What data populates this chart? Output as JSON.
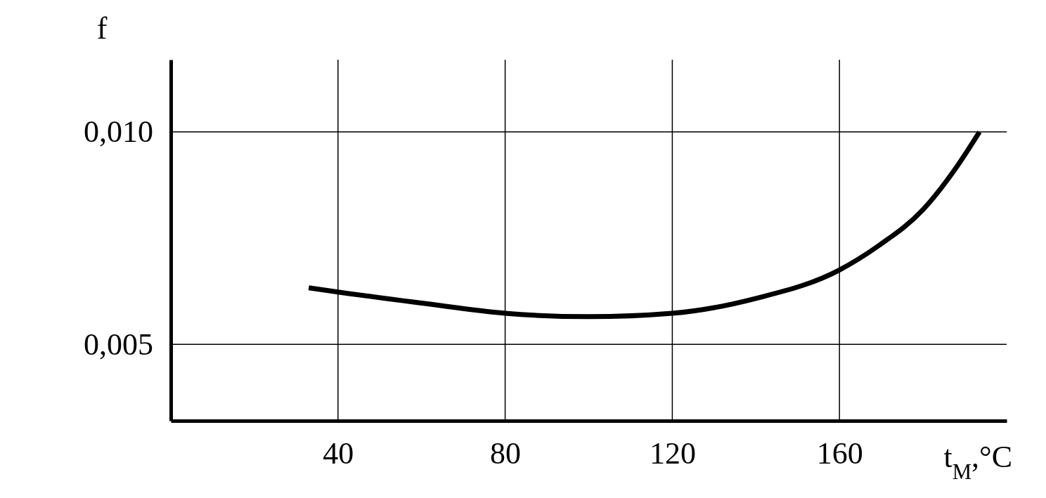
{
  "chart_data": {
    "type": "line",
    "xlabel": "t$_{М}$,°C",
    "ylabel": "f",
    "x": [
      33,
      40,
      60,
      80,
      100,
      120,
      140,
      160,
      169.5,
      180,
      188,
      193.5
    ],
    "series": [
      {
        "color": "#000000",
        "values": [
          0.00633,
          0.00623,
          0.00597,
          0.00573,
          0.00565,
          0.00573,
          0.00608,
          0.00675,
          0.00733,
          0.00817,
          0.00917,
          0.01
        ]
      }
    ],
    "xlim": [
      0,
      200
    ],
    "xticks": [
      40,
      80,
      120,
      160
    ],
    "ylim": [
      0.0032,
      0.0117
    ],
    "yticks": [
      {
        "value": 0.005,
        "label": "0,005"
      },
      {
        "value": 0.01,
        "label": "0,010"
      }
    ],
    "grid": true,
    "marker": "none",
    "line_style": "solid"
  }
}
